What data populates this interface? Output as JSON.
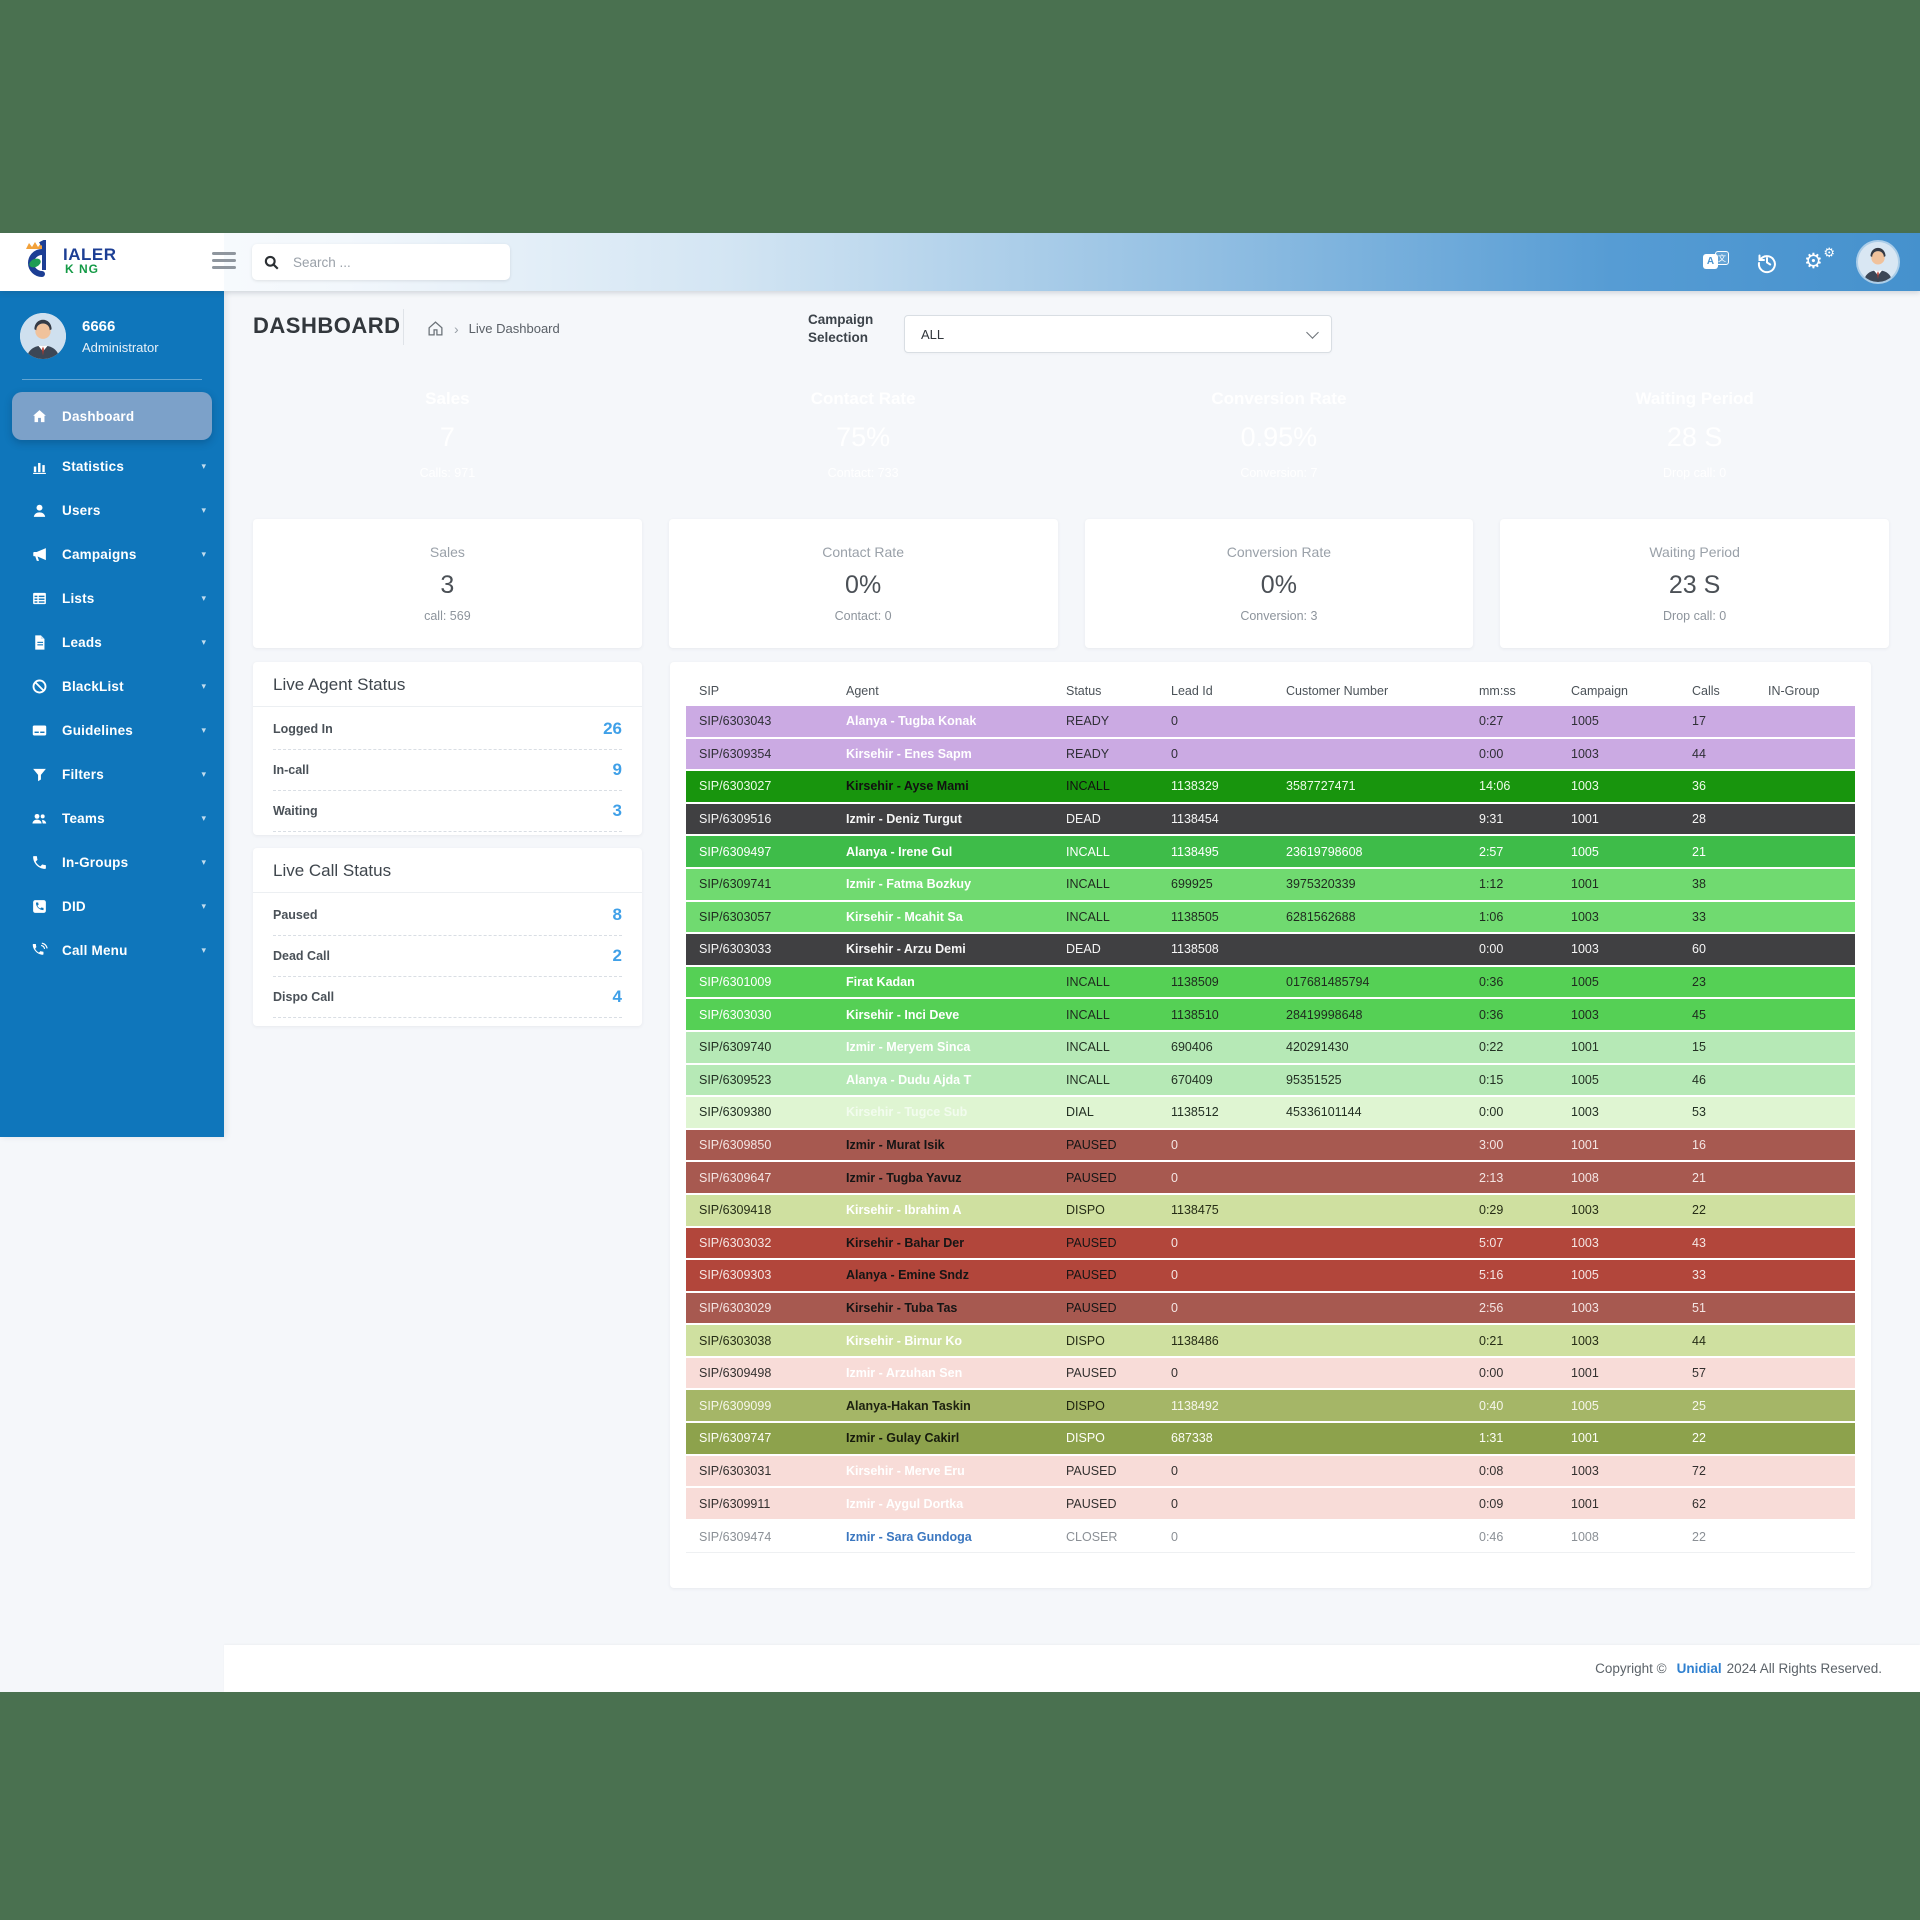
{
  "palette": {
    "band_green": "#4a7150",
    "sidebar_blue": "#0f76bb",
    "topbar_blue": "#4591cd",
    "active_item": "#7ca1c9",
    "accent_blue": "#3fa0e8",
    "kpi_green": "#17a269",
    "kpi_indigo": "#5a65d6",
    "kpi_orange": "#f89e33",
    "kpi_red": "#e74f5c",
    "footer_brand_blue": "#2f80d0"
  },
  "topbar": {
    "logo_line1": "IALER",
    "logo_line2": "K NG",
    "search_placeholder": "Search ...",
    "translate_a": "A",
    "translate_b": "文"
  },
  "sidebar": {
    "user": {
      "id": "6666",
      "role": "Administrator"
    },
    "items": [
      {
        "label": "Dashboard",
        "icon": "home-icon",
        "active": true,
        "caret": false
      },
      {
        "label": "Statistics",
        "icon": "bar-chart-icon",
        "active": false,
        "caret": true
      },
      {
        "label": "Users",
        "icon": "user-icon",
        "active": false,
        "caret": true
      },
      {
        "label": "Campaigns",
        "icon": "megaphone-icon",
        "active": false,
        "caret": true
      },
      {
        "label": "Lists",
        "icon": "table-list-icon",
        "active": false,
        "caret": true
      },
      {
        "label": "Leads",
        "icon": "file-icon",
        "active": false,
        "caret": true
      },
      {
        "label": "BlackList",
        "icon": "ban-icon",
        "active": false,
        "caret": true
      },
      {
        "label": "Guidelines",
        "icon": "card-icon",
        "active": false,
        "caret": true
      },
      {
        "label": "Filters",
        "icon": "funnel-icon",
        "active": false,
        "caret": true
      },
      {
        "label": "Teams",
        "icon": "users-icon",
        "active": false,
        "caret": true
      },
      {
        "label": "In-Groups",
        "icon": "phone-icon",
        "active": false,
        "caret": true
      },
      {
        "label": "DID",
        "icon": "phone-square-icon",
        "active": false,
        "caret": true
      },
      {
        "label": "Call Menu",
        "icon": "phone-volume-icon",
        "active": false,
        "caret": true
      }
    ]
  },
  "page": {
    "title": "DASHBOARD",
    "breadcrumb": "Live Dashboard",
    "campaign_label_line1": "Campaign",
    "campaign_label_line2": "Selection",
    "campaign_value": "ALL"
  },
  "kpi_cards": [
    {
      "title": "Sales",
      "value": "7",
      "caption": "Calls: 971",
      "color": "#17a269"
    },
    {
      "title": "Contact Rate",
      "value": "75%",
      "caption": "Contact: 733",
      "color": "#5a65d6"
    },
    {
      "title": "Conversion Rate",
      "value": "0.95%",
      "caption": "Conversion: 7",
      "color": "#f89e33"
    },
    {
      "title": "Waiting Period",
      "value": "28 S",
      "caption": "Drop call: 0",
      "color": "#e74f5c"
    }
  ],
  "summary_cards": [
    {
      "title": "Sales",
      "value": "3",
      "caption": "call: 569"
    },
    {
      "title": "Contact Rate",
      "value": "0%",
      "caption": "Contact: 0"
    },
    {
      "title": "Conversion Rate",
      "value": "0%",
      "caption": "Conversion: 3"
    },
    {
      "title": "Waiting Period",
      "value": "23 S",
      "caption": "Drop call: 0"
    }
  ],
  "agent_status": {
    "title": "Live Agent Status",
    "rows": [
      {
        "label": "Logged In",
        "value": "26"
      },
      {
        "label": "In-call",
        "value": "9"
      },
      {
        "label": "Waiting",
        "value": "3"
      }
    ]
  },
  "call_status": {
    "title": "Live Call Status",
    "rows": [
      {
        "label": "Paused",
        "value": "8"
      },
      {
        "label": "Dead Call",
        "value": "2"
      },
      {
        "label": "Dispo Call",
        "value": "4"
      }
    ]
  },
  "table": {
    "columns": [
      "SIP",
      "Agent",
      "Status",
      "Lead Id",
      "Customer Number",
      "mm:ss",
      "Campaign",
      "Calls",
      "IN-Group"
    ],
    "rows": [
      {
        "sip": "SIP/6303043",
        "agent": "Alanya - Tugba Konak",
        "status": "READY",
        "lead_id": "0",
        "customer_number": "",
        "mmss": "0:27",
        "campaign": "1005",
        "calls": "17",
        "in_group": "",
        "variant": "lavender"
      },
      {
        "sip": "SIP/6309354",
        "agent": "Kirsehir - Enes Sapm",
        "status": "READY",
        "lead_id": "0",
        "customer_number": "",
        "mmss": "0:00",
        "campaign": "1003",
        "calls": "44",
        "in_group": "",
        "variant": "lavender"
      },
      {
        "sip": "SIP/6303027",
        "agent": "Kirsehir - Ayse Mami",
        "status": "INCALL",
        "lead_id": "1138329",
        "customer_number": "3587727471",
        "mmss": "14:06",
        "campaign": "1003",
        "calls": "36",
        "in_group": "",
        "variant": "dgreen"
      },
      {
        "sip": "SIP/6309516",
        "agent": "Izmir - Deniz Turgut",
        "status": "DEAD",
        "lead_id": "1138454",
        "customer_number": "",
        "mmss": "9:31",
        "campaign": "1001",
        "calls": "28",
        "in_group": "",
        "variant": "charcoal"
      },
      {
        "sip": "SIP/6309497",
        "agent": "Alanya - Irene Gul",
        "status": "INCALL",
        "lead_id": "1138495",
        "customer_number": "23619798608",
        "mmss": "2:57",
        "campaign": "1005",
        "calls": "21",
        "in_group": "",
        "variant": "mgreen"
      },
      {
        "sip": "SIP/6309741",
        "agent": "Izmir - Fatma Bozkuy",
        "status": "INCALL",
        "lead_id": "699925",
        "customer_number": "3975320339",
        "mmss": "1:12",
        "campaign": "1001",
        "calls": "38",
        "in_group": "",
        "variant": "green2"
      },
      {
        "sip": "SIP/6303057",
        "agent": "Kirsehir - Mcahit Sa",
        "status": "INCALL",
        "lead_id": "1138505",
        "customer_number": "6281562688",
        "mmss": "1:06",
        "campaign": "1003",
        "calls": "33",
        "in_group": "",
        "variant": "green2"
      },
      {
        "sip": "SIP/6303033",
        "agent": "Kirsehir - Arzu Demi",
        "status": "DEAD",
        "lead_id": "1138508",
        "customer_number": "",
        "mmss": "0:00",
        "campaign": "1003",
        "calls": "60",
        "in_group": "",
        "variant": "charcoal"
      },
      {
        "sip": "SIP/6301009",
        "agent": "Firat Kadan",
        "status": "INCALL",
        "lead_id": "1138509",
        "customer_number": "017681485794",
        "mmss": "0:36",
        "campaign": "1005",
        "calls": "23",
        "in_group": "",
        "variant": "green3"
      },
      {
        "sip": "SIP/6303030",
        "agent": "Kirsehir - Inci Deve",
        "status": "INCALL",
        "lead_id": "1138510",
        "customer_number": "28419998648",
        "mmss": "0:36",
        "campaign": "1003",
        "calls": "45",
        "in_group": "",
        "variant": "green3"
      },
      {
        "sip": "SIP/6309740",
        "agent": "Izmir - Meryem Sinca",
        "status": "INCALL",
        "lead_id": "690406",
        "customer_number": "420291430",
        "mmss": "0:22",
        "campaign": "1001",
        "calls": "15",
        "in_group": "",
        "variant": "pgreen"
      },
      {
        "sip": "SIP/6309523",
        "agent": "Alanya - Dudu Ajda T",
        "status": "INCALL",
        "lead_id": "670409",
        "customer_number": "95351525",
        "mmss": "0:15",
        "campaign": "1005",
        "calls": "46",
        "in_group": "",
        "variant": "pgreen"
      },
      {
        "sip": "SIP/6309380",
        "agent": "Kirsehir - Tugce Sub",
        "status": "DIAL",
        "lead_id": "1138512",
        "customer_number": "45336101144",
        "mmss": "0:00",
        "campaign": "1003",
        "calls": "53",
        "in_group": "",
        "variant": "ppgreen"
      },
      {
        "sip": "SIP/6309850",
        "agent": "Izmir - Murat Isik",
        "status": "PAUSED",
        "lead_id": "0",
        "customer_number": "",
        "mmss": "3:00",
        "campaign": "1001",
        "calls": "16",
        "in_group": "",
        "variant": "brown"
      },
      {
        "sip": "SIP/6309647",
        "agent": "Izmir - Tugba Yavuz",
        "status": "PAUSED",
        "lead_id": "0",
        "customer_number": "",
        "mmss": "2:13",
        "campaign": "1008",
        "calls": "21",
        "in_group": "",
        "variant": "brown"
      },
      {
        "sip": "SIP/6309418",
        "agent": "Kirsehir - Ibrahim A",
        "status": "DISPO",
        "lead_id": "1138475",
        "customer_number": "",
        "mmss": "0:29",
        "campaign": "1003",
        "calls": "22",
        "in_group": "",
        "variant": "polive"
      },
      {
        "sip": "SIP/6303032",
        "agent": "Kirsehir - Bahar Der",
        "status": "PAUSED",
        "lead_id": "0",
        "customer_number": "",
        "mmss": "5:07",
        "campaign": "1003",
        "calls": "43",
        "in_group": "",
        "variant": "brick"
      },
      {
        "sip": "SIP/6309303",
        "agent": "Alanya - Emine Sndz",
        "status": "PAUSED",
        "lead_id": "0",
        "customer_number": "",
        "mmss": "5:16",
        "campaign": "1005",
        "calls": "33",
        "in_group": "",
        "variant": "brick"
      },
      {
        "sip": "SIP/6303029",
        "agent": "Kirsehir - Tuba Tas",
        "status": "PAUSED",
        "lead_id": "0",
        "customer_number": "",
        "mmss": "2:56",
        "campaign": "1003",
        "calls": "51",
        "in_group": "",
        "variant": "brown"
      },
      {
        "sip": "SIP/6303038",
        "agent": "Kirsehir - Birnur Ko",
        "status": "DISPO",
        "lead_id": "1138486",
        "customer_number": "",
        "mmss": "0:21",
        "campaign": "1003",
        "calls": "44",
        "in_group": "",
        "variant": "polive"
      },
      {
        "sip": "SIP/6309498",
        "agent": "Izmir - Arzuhan Sen",
        "status": "PAUSED",
        "lead_id": "0",
        "customer_number": "",
        "mmss": "0:00",
        "campaign": "1001",
        "calls": "57",
        "in_group": "",
        "variant": "pink"
      },
      {
        "sip": "SIP/6309099",
        "agent": "Alanya-Hakan Taskin",
        "status": "DISPO",
        "lead_id": "1138492",
        "customer_number": "",
        "mmss": "0:40",
        "campaign": "1005",
        "calls": "25",
        "in_group": "",
        "variant": "olive"
      },
      {
        "sip": "SIP/6309747",
        "agent": "Izmir - Gulay Cakirl",
        "status": "DISPO",
        "lead_id": "687338",
        "customer_number": "",
        "mmss": "1:31",
        "campaign": "1001",
        "calls": "22",
        "in_group": "",
        "variant": "olive2"
      },
      {
        "sip": "SIP/6303031",
        "agent": "Kirsehir - Merve Eru",
        "status": "PAUSED",
        "lead_id": "0",
        "customer_number": "",
        "mmss": "0:08",
        "campaign": "1003",
        "calls": "72",
        "in_group": "",
        "variant": "pink"
      },
      {
        "sip": "SIP/6309911",
        "agent": "Izmir - Aygul Dortka",
        "status": "PAUSED",
        "lead_id": "0",
        "customer_number": "",
        "mmss": "0:09",
        "campaign": "1001",
        "calls": "62",
        "in_group": "",
        "variant": "pink"
      },
      {
        "sip": "SIP/6309474",
        "agent": "Izmir - Sara Gundoga",
        "status": "CLOSER",
        "lead_id": "0",
        "customer_number": "",
        "mmss": "0:46",
        "campaign": "1008",
        "calls": "22",
        "in_group": "",
        "variant": "white",
        "agent_link": true
      }
    ]
  },
  "footer": {
    "prefix": "Copyright ©",
    "brand": "Unidial",
    "suffix": "2024 All Rights Reserved."
  }
}
